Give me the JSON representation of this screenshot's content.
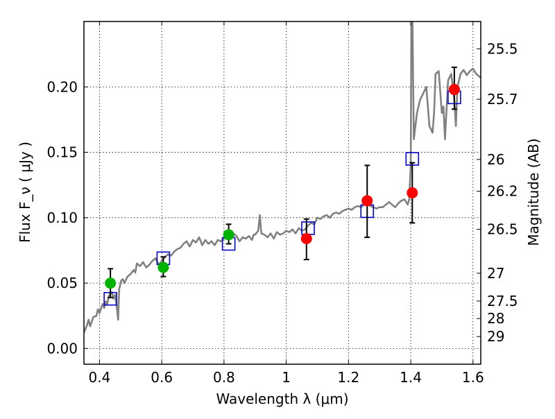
{
  "chart_data": {
    "type": "scatter",
    "xlabel": "Wavelength  λ (μm)",
    "ylabel": "Flux  F_ν  ( μJy )",
    "y2label": "Magnitude (AB)",
    "xlim": [
      0.35,
      1.625
    ],
    "ylim": [
      -0.012,
      0.25
    ],
    "grid": true,
    "x_ticks": [
      {
        "v": 0.4,
        "label": "0.4"
      },
      {
        "v": 0.6,
        "label": "0.6"
      },
      {
        "v": 0.8,
        "label": "0.8"
      },
      {
        "v": 1.0,
        "label": "1"
      },
      {
        "v": 1.2,
        "label": "1.2"
      },
      {
        "v": 1.4,
        "label": "1.4"
      },
      {
        "v": 1.6,
        "label": "1.6"
      }
    ],
    "y_ticks": [
      {
        "v": 0.0,
        "label": "0.00"
      },
      {
        "v": 0.05,
        "label": "0.05"
      },
      {
        "v": 0.1,
        "label": "0.10"
      },
      {
        "v": 0.15,
        "label": "0.15"
      },
      {
        "v": 0.2,
        "label": "0.20"
      }
    ],
    "mag_ticks": [
      {
        "mag": 25.5,
        "label": "25.5"
      },
      {
        "mag": 25.7,
        "label": "25.7"
      },
      {
        "mag": 26,
        "label": "26"
      },
      {
        "mag": 26.2,
        "label": "26.2"
      },
      {
        "mag": 26.5,
        "label": "26.5"
      },
      {
        "mag": 27,
        "label": "27"
      },
      {
        "mag": 27.5,
        "label": "27.5"
      },
      {
        "mag": 28,
        "label": "28"
      },
      {
        "mag": 29,
        "label": "29"
      }
    ],
    "series": [
      {
        "kind": "line",
        "color": "#808080",
        "points": [
          [
            0.35,
            0.012
          ],
          [
            0.36,
            0.018
          ],
          [
            0.365,
            0.022
          ],
          [
            0.37,
            0.017
          ],
          [
            0.38,
            0.024
          ],
          [
            0.39,
            0.025
          ],
          [
            0.395,
            0.03
          ],
          [
            0.4,
            0.027
          ],
          [
            0.41,
            0.034
          ],
          [
            0.415,
            0.031
          ],
          [
            0.42,
            0.036
          ],
          [
            0.425,
            0.034
          ],
          [
            0.43,
            0.04
          ],
          [
            0.435,
            0.042
          ],
          [
            0.44,
            0.043
          ],
          [
            0.445,
            0.038
          ],
          [
            0.45,
            0.041
          ],
          [
            0.455,
            0.033
          ],
          [
            0.46,
            0.022
          ],
          [
            0.463,
            0.045
          ],
          [
            0.47,
            0.052
          ],
          [
            0.475,
            0.053
          ],
          [
            0.48,
            0.05
          ],
          [
            0.49,
            0.055
          ],
          [
            0.5,
            0.057
          ],
          [
            0.51,
            0.06
          ],
          [
            0.515,
            0.058
          ],
          [
            0.52,
            0.065
          ],
          [
            0.53,
            0.063
          ],
          [
            0.54,
            0.066
          ],
          [
            0.55,
            0.062
          ],
          [
            0.56,
            0.064
          ],
          [
            0.57,
            0.067
          ],
          [
            0.58,
            0.069
          ],
          [
            0.59,
            0.064
          ],
          [
            0.6,
            0.067
          ],
          [
            0.61,
            0.07
          ],
          [
            0.62,
            0.072
          ],
          [
            0.63,
            0.071
          ],
          [
            0.64,
            0.074
          ],
          [
            0.65,
            0.076
          ],
          [
            0.66,
            0.077
          ],
          [
            0.67,
            0.08
          ],
          [
            0.68,
            0.082
          ],
          [
            0.69,
            0.078
          ],
          [
            0.7,
            0.083
          ],
          [
            0.71,
            0.081
          ],
          [
            0.72,
            0.085
          ],
          [
            0.73,
            0.079
          ],
          [
            0.74,
            0.083
          ],
          [
            0.75,
            0.08
          ],
          [
            0.76,
            0.082
          ],
          [
            0.77,
            0.079
          ],
          [
            0.78,
            0.083
          ],
          [
            0.79,
            0.082
          ],
          [
            0.8,
            0.084
          ],
          [
            0.81,
            0.085
          ],
          [
            0.82,
            0.084
          ],
          [
            0.83,
            0.088
          ],
          [
            0.84,
            0.086
          ],
          [
            0.85,
            0.082
          ],
          [
            0.86,
            0.085
          ],
          [
            0.87,
            0.084
          ],
          [
            0.88,
            0.086
          ],
          [
            0.89,
            0.083
          ],
          [
            0.895,
            0.087
          ],
          [
            0.9,
            0.087
          ],
          [
            0.91,
            0.09
          ],
          [
            0.915,
            0.102
          ],
          [
            0.92,
            0.088
          ],
          [
            0.93,
            0.087
          ],
          [
            0.94,
            0.085
          ],
          [
            0.95,
            0.088
          ],
          [
            0.96,
            0.084
          ],
          [
            0.97,
            0.089
          ],
          [
            0.98,
            0.087
          ],
          [
            0.99,
            0.088
          ],
          [
            1.0,
            0.09
          ],
          [
            1.01,
            0.089
          ],
          [
            1.02,
            0.091
          ],
          [
            1.03,
            0.088
          ],
          [
            1.04,
            0.092
          ],
          [
            1.05,
            0.09
          ],
          [
            1.06,
            0.091
          ],
          [
            1.07,
            0.094
          ],
          [
            1.08,
            0.096
          ],
          [
            1.09,
            0.095
          ],
          [
            1.1,
            0.1
          ],
          [
            1.11,
            0.099
          ],
          [
            1.12,
            0.101
          ],
          [
            1.13,
            0.102
          ],
          [
            1.14,
            0.1
          ],
          [
            1.15,
            0.103
          ],
          [
            1.16,
            0.104
          ],
          [
            1.17,
            0.103
          ],
          [
            1.18,
            0.105
          ],
          [
            1.19,
            0.106
          ],
          [
            1.2,
            0.107
          ],
          [
            1.21,
            0.106
          ],
          [
            1.22,
            0.108
          ],
          [
            1.23,
            0.109
          ],
          [
            1.24,
            0.108
          ],
          [
            1.25,
            0.11
          ],
          [
            1.26,
            0.111
          ],
          [
            1.27,
            0.109
          ],
          [
            1.28,
            0.108
          ],
          [
            1.29,
            0.107
          ],
          [
            1.3,
            0.108
          ],
          [
            1.31,
            0.108
          ],
          [
            1.32,
            0.11
          ],
          [
            1.33,
            0.112
          ],
          [
            1.34,
            0.11
          ],
          [
            1.35,
            0.108
          ],
          [
            1.36,
            0.111
          ],
          [
            1.37,
            0.113
          ],
          [
            1.38,
            0.114
          ],
          [
            1.39,
            0.11
          ],
          [
            1.395,
            0.114
          ],
          [
            1.4,
            0.14
          ],
          [
            1.402,
            0.26
          ],
          [
            1.405,
            0.26
          ],
          [
            1.41,
            0.16
          ],
          [
            1.42,
            0.18
          ],
          [
            1.43,
            0.19
          ],
          [
            1.44,
            0.195
          ],
          [
            1.45,
            0.2
          ],
          [
            1.46,
            0.17
          ],
          [
            1.47,
            0.165
          ],
          [
            1.475,
            0.18
          ],
          [
            1.48,
            0.21
          ],
          [
            1.49,
            0.212
          ],
          [
            1.5,
            0.18
          ],
          [
            1.505,
            0.185
          ],
          [
            1.51,
            0.16
          ],
          [
            1.52,
            0.205
          ],
          [
            1.53,
            0.21
          ],
          [
            1.54,
            0.19
          ],
          [
            1.545,
            0.17
          ],
          [
            1.55,
            0.2
          ],
          [
            1.56,
            0.21
          ],
          [
            1.57,
            0.213
          ],
          [
            1.58,
            0.209
          ],
          [
            1.59,
            0.212
          ],
          [
            1.6,
            0.214
          ],
          [
            1.61,
            0.21
          ],
          [
            1.62,
            0.208
          ],
          [
            1.625,
            0.207
          ]
        ]
      },
      {
        "kind": "open-square",
        "color": "#0000cc",
        "points": [
          [
            0.435,
            0.038
          ],
          [
            0.605,
            0.069
          ],
          [
            0.815,
            0.08
          ],
          [
            1.07,
            0.092
          ],
          [
            1.26,
            0.105
          ],
          [
            1.405,
            0.145
          ],
          [
            1.54,
            0.192
          ]
        ]
      },
      {
        "kind": "filled-circle",
        "color": "#00b300",
        "points": [
          [
            0.435,
            0.05
          ],
          [
            0.605,
            0.062
          ],
          [
            0.815,
            0.087
          ]
        ]
      },
      {
        "kind": "filled-circle",
        "color": "#ff0000",
        "points": [
          [
            1.065,
            0.084
          ],
          [
            1.26,
            0.113
          ],
          [
            1.405,
            0.119
          ],
          [
            1.54,
            0.198
          ]
        ]
      }
    ],
    "errorbars": [
      {
        "x": 0.435,
        "low": 0.039,
        "high": 0.061
      },
      {
        "x": 0.605,
        "low": 0.055,
        "high": 0.07
      },
      {
        "x": 0.815,
        "low": 0.08,
        "high": 0.095
      },
      {
        "x": 1.065,
        "low": 0.068,
        "high": 0.099
      },
      {
        "x": 1.26,
        "low": 0.085,
        "high": 0.14
      },
      {
        "x": 1.405,
        "low": 0.096,
        "high": 0.142
      },
      {
        "x": 1.54,
        "low": 0.183,
        "high": 0.215
      }
    ]
  }
}
